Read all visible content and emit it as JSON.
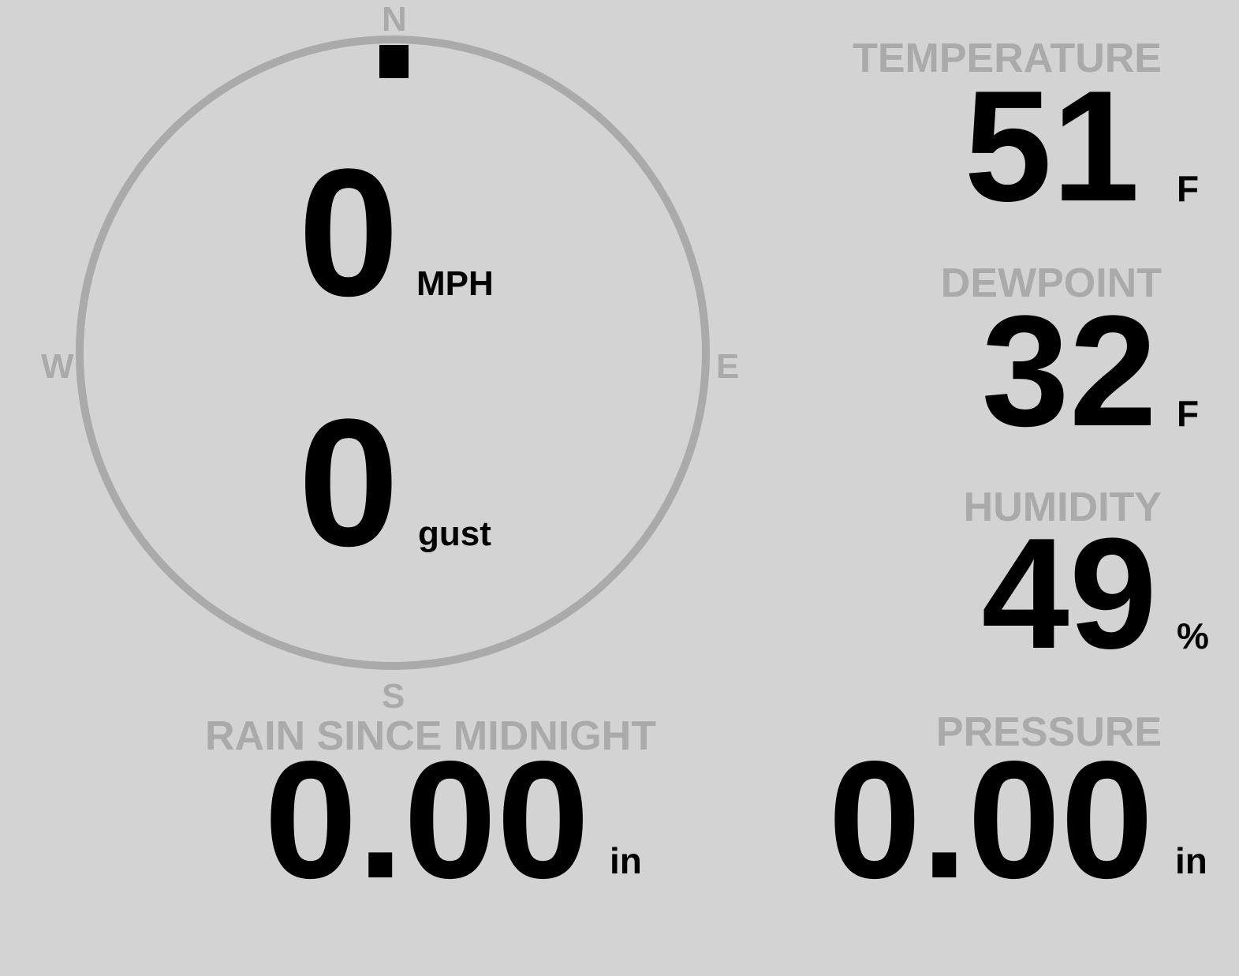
{
  "colors": {
    "background": "#d3d3d3",
    "label": "#aaaaaa",
    "value": "#000000",
    "ring": "#aaaaaa"
  },
  "wind": {
    "compass": {
      "north": "N",
      "east": "E",
      "south": "S",
      "west": "W"
    },
    "direction_deg": 0,
    "speed": "0",
    "speed_unit": "MPH",
    "gust": "0",
    "gust_unit": "gust"
  },
  "temperature": {
    "label": "TEMPERATURE",
    "value": "51",
    "unit": "F"
  },
  "dewpoint": {
    "label": "DEWPOINT",
    "value": "32",
    "unit": "F"
  },
  "humidity": {
    "label": "HUMIDITY",
    "value": "49",
    "unit": "%"
  },
  "rain": {
    "label": "RAIN SINCE MIDNIGHT",
    "value": "0.00",
    "unit": "in"
  },
  "pressure": {
    "label": "PRESSURE",
    "value": "0.00",
    "unit": "in"
  }
}
